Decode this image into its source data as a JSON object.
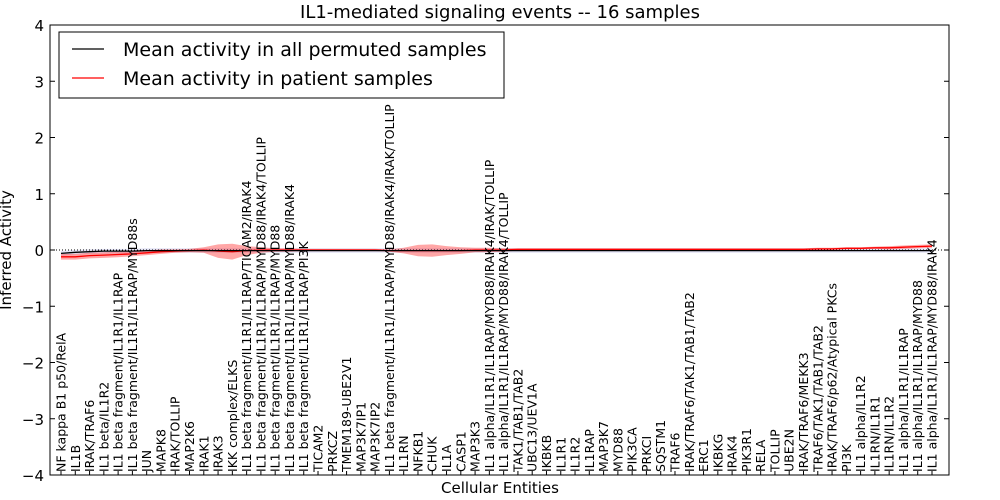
{
  "chart_data": {
    "type": "line",
    "title": "IL1-mediated signaling events -- 16 samples",
    "xlabel": "Cellular Entities",
    "ylabel": "Inferred Activity",
    "ylim": [
      -4,
      4
    ],
    "yticks": [
      "−4",
      "−3",
      "−2",
      "−1",
      "0",
      "1",
      "2",
      "3",
      "4"
    ],
    "grid": false,
    "legend_position": "top-left",
    "categories": [
      "NF kappa B1 p50/RelA",
      "IL1B",
      "IRAK/TRAF6",
      "IL1 beta/IL1R2",
      "IL1 beta fragment/IL1R1/IL1RAP",
      "IL1 beta fragment/IL1R1/IL1RAP/MYD88s",
      "JUN",
      "MAPK8",
      "IRAK/TOLLIP",
      "MAP2K6",
      "IRAK1",
      "IRAK3",
      "IKK complex/ELKS",
      "IL1 beta fragment/IL1R1/IL1RAP/TICAM2/IRAK4",
      "IL1 beta fragment/IL1R1/IL1RAP/MYD88/IRAK4/TOLLIP",
      "IL1 beta fragment/IL1R1/IL1RAP/MYD88",
      "IL1 beta fragment/IL1R1/IL1RAP/MYD88/IRAK4",
      "IL1 beta fragment/IL1R1/IL1RAP/PI3K",
      "TICAM2",
      "PRKCZ",
      "TMEM189-UBE2V1",
      "MAP3K7IP1",
      "MAP3K7IP2",
      "IL1 beta fragment/IL1R1/IL1RAP/MYD88/IRAK4/IRAK/TOLLIP",
      "IL1RN",
      "NFKB1",
      "CHUK",
      "IL1A",
      "CASP1",
      "MAP3K3",
      "IL1 alpha/IL1R1/IL1RAP/MYD88/IRAK4/IRAK/TOLLIP",
      "IL1 alpha/IL1R1/IL1RAP/MYD88/IRAK4/TOLLIP",
      "TAK1/TAB1/TAB2",
      "UBC13/UEV1A",
      "IKBKB",
      "IL1R1",
      "IL1R2",
      "IL1RAP",
      "MAP3K7",
      "MYD88",
      "PIK3CA",
      "PRKCI",
      "SQSTM1",
      "TRAF6",
      "IRAK/TRAF6/TAK1/TAB1/TAB2",
      "ERC1",
      "IKBKG",
      "IRAK4",
      "PIK3R1",
      "RELA",
      "TOLLIP",
      "UBE2N",
      "IRAK/TRAF6/MEKK3",
      "TRAF6/TAK1/TAB1/TAB2",
      "IRAK/TRAF6/p62/Atypical PKCs",
      "PI3K",
      "IL1 alpha/IL1R2",
      "IL1RN/IL1R1",
      "IL1RN/IL1R2",
      "IL1 alpha/IL1R1/IL1RAP",
      "IL1 alpha/IL1R1/IL1RAP/MYD88",
      "IL1 alpha/IL1R1/IL1RAP/MYD88/IRAK4"
    ],
    "series": [
      {
        "name": "Mean activity in all permuted samples",
        "color": "#000000",
        "values": [
          -0.06,
          -0.04,
          -0.03,
          -0.02,
          -0.02,
          -0.02,
          -0.01,
          -0.01,
          -0.01,
          -0.01,
          -0.01,
          -0.01,
          -0.01,
          -0.01,
          -0.01,
          -0.01,
          -0.01,
          -0.01,
          -0.01,
          -0.01,
          -0.01,
          -0.01,
          -0.01,
          -0.01,
          -0.01,
          -0.01,
          -0.01,
          -0.01,
          -0.01,
          -0.01,
          -0.01,
          -0.01,
          -0.01,
          -0.01,
          -0.01,
          -0.01,
          -0.01,
          -0.01,
          -0.01,
          -0.01,
          -0.01,
          -0.01,
          -0.01,
          -0.01,
          -0.01,
          -0.01,
          -0.01,
          -0.01,
          -0.01,
          -0.01,
          -0.01,
          -0.01,
          -0.01,
          -0.01,
          -0.01,
          -0.01,
          -0.01,
          -0.01,
          -0.01,
          -0.01,
          -0.01,
          -0.01
        ]
      },
      {
        "name": "Mean activity in patient samples",
        "color": "#ff0000",
        "values": [
          -0.12,
          -0.12,
          -0.1,
          -0.09,
          -0.08,
          -0.07,
          -0.05,
          -0.03,
          -0.02,
          -0.01,
          0.0,
          -0.02,
          -0.03,
          -0.01,
          0.0,
          0.0,
          0.0,
          0.0,
          0.0,
          0.0,
          0.0,
          0.0,
          0.0,
          -0.01,
          -0.01,
          -0.01,
          -0.01,
          -0.01,
          -0.01,
          0.0,
          0.0,
          0.0,
          0.01,
          0.01,
          0.01,
          0.01,
          0.01,
          0.01,
          0.01,
          0.01,
          0.01,
          0.01,
          0.01,
          0.01,
          0.01,
          0.01,
          0.01,
          0.01,
          0.01,
          0.01,
          0.01,
          0.01,
          0.01,
          0.02,
          0.02,
          0.03,
          0.03,
          0.04,
          0.04,
          0.05,
          0.06,
          0.07
        ]
      }
    ],
    "patient_band_halfwidth": [
      0.05,
      0.05,
      0.05,
      0.05,
      0.05,
      0.04,
      0.04,
      0.04,
      0.03,
      0.03,
      0.05,
      0.12,
      0.14,
      0.08,
      0.05,
      0.03,
      0.03,
      0.02,
      0.02,
      0.02,
      0.02,
      0.02,
      0.02,
      0.02,
      0.05,
      0.1,
      0.11,
      0.08,
      0.06,
      0.04,
      0.04,
      0.03,
      0.02,
      0.02,
      0.02,
      0.02,
      0.02,
      0.02,
      0.02,
      0.02,
      0.02,
      0.02,
      0.02,
      0.02,
      0.02,
      0.02,
      0.02,
      0.02,
      0.02,
      0.02,
      0.02,
      0.02,
      0.02,
      0.02,
      0.02,
      0.02,
      0.02,
      0.02,
      0.03,
      0.03,
      0.03,
      0.03
    ],
    "permuted_band_halfwidth": 0.04
  }
}
